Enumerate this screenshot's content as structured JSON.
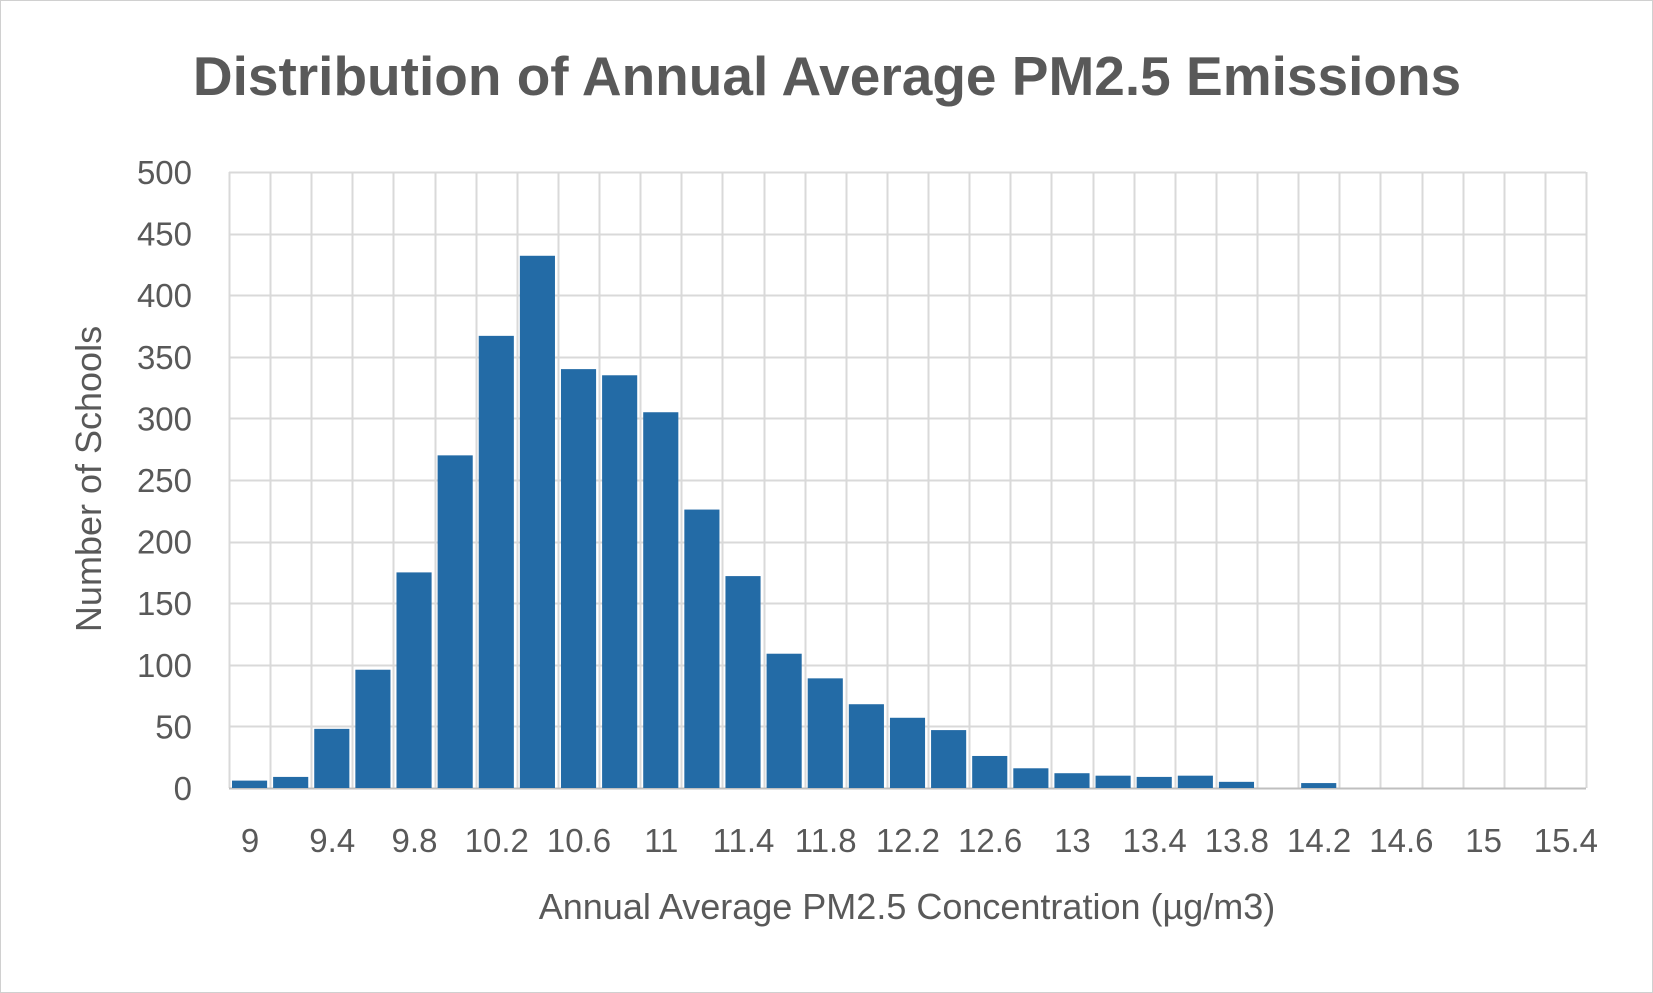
{
  "chart_data": {
    "type": "bar",
    "title": "Distribution of Annual Average PM2.5 Emissions",
    "xlabel": "Annual Average PM2.5 Concentration (µg/m3)",
    "ylabel": "Number of Schools",
    "xlim": [
      9,
      15.6
    ],
    "ylim": [
      0,
      500
    ],
    "x_tick_labels": [
      "9",
      "9.4",
      "9.8",
      "10.2",
      "10.6",
      "11",
      "11.4",
      "11.8",
      "12.2",
      "12.6",
      "13",
      "13.4",
      "13.8",
      "14.2",
      "14.6",
      "15",
      "15.4"
    ],
    "y_tick_labels": [
      "0",
      "50",
      "100",
      "150",
      "200",
      "250",
      "300",
      "350",
      "400",
      "450",
      "500"
    ],
    "grid": true,
    "bin_width": 0.2,
    "bin_starts": [
      9.0,
      9.2,
      9.4,
      9.6,
      9.8,
      10.0,
      10.2,
      10.4,
      10.6,
      10.8,
      11.0,
      11.2,
      11.4,
      11.6,
      11.8,
      12.0,
      12.2,
      12.4,
      12.6,
      12.8,
      13.0,
      13.2,
      13.4,
      13.6,
      13.8,
      14.0,
      14.2,
      14.4,
      14.6,
      14.8,
      15.0,
      15.2,
      15.4
    ],
    "values": [
      6,
      9,
      48,
      96,
      175,
      270,
      367,
      432,
      340,
      335,
      305,
      226,
      172,
      109,
      89,
      68,
      57,
      47,
      26,
      16,
      12,
      10,
      9,
      10,
      5,
      0,
      4,
      0,
      0,
      0,
      0,
      0,
      0
    ],
    "bar_color": "#236ba6"
  }
}
